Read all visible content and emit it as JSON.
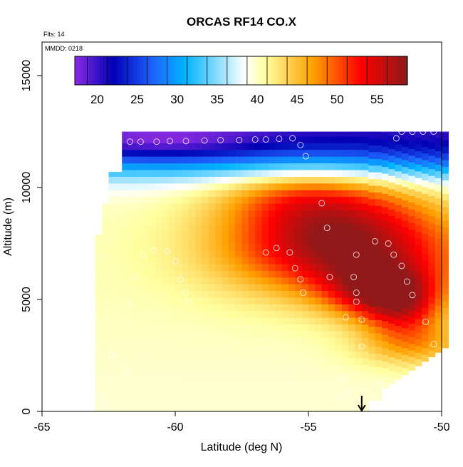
{
  "chart_data": {
    "type": "heatmap",
    "title": "ORCAS RF14 CO.X",
    "flights_label": "Flts: 14",
    "date_label": "MMDD: 0218",
    "xlabel": "Latitude (deg N)",
    "ylabel": "Altitude (m)",
    "xlim": [
      -65,
      -50
    ],
    "ylim": [
      0,
      16500
    ],
    "x_ticks": [
      -65,
      -60,
      -55,
      -50
    ],
    "x_tick_labels": [
      "-65",
      "-60",
      "-55",
      "-50"
    ],
    "y_ticks": [
      0,
      5000,
      10000,
      15000
    ],
    "y_tick_labels": [
      "0",
      "5000",
      "10000",
      "15000"
    ],
    "colorbar": {
      "min": 17.2,
      "max": 58.8,
      "ticks": [
        20,
        25,
        30,
        35,
        40,
        45,
        50,
        55
      ],
      "tick_labels": [
        "20",
        "25",
        "30",
        "35",
        "40",
        "45",
        "50",
        "55"
      ],
      "colors": [
        "#8a2be2",
        "#0000b4",
        "#1e64ff",
        "#00b4ff",
        "#ffffff",
        "#ffffa0",
        "#ffa000",
        "#ff0000",
        "#8b1a1a"
      ],
      "color_stops": [
        17.2,
        22,
        27,
        31,
        38.5,
        41,
        47,
        53,
        58.8
      ]
    },
    "field_description_values": {
      "background_low": 40,
      "upper_trough_min": 19,
      "core_max": 56
    },
    "observation_points": [
      {
        "lat": -62.2,
        "alt": 12000
      },
      {
        "lat": -61.7,
        "alt": 12050
      },
      {
        "lat": -61.3,
        "alt": 12050
      },
      {
        "lat": -60.7,
        "alt": 12050
      },
      {
        "lat": -60.2,
        "alt": 12080
      },
      {
        "lat": -59.6,
        "alt": 12080
      },
      {
        "lat": -58.9,
        "alt": 12100
      },
      {
        "lat": -58.3,
        "alt": 12120
      },
      {
        "lat": -57.6,
        "alt": 12120
      },
      {
        "lat": -57.0,
        "alt": 12150
      },
      {
        "lat": -56.6,
        "alt": 12150
      },
      {
        "lat": -56.1,
        "alt": 12180
      },
      {
        "lat": -55.6,
        "alt": 12200
      },
      {
        "lat": -55.3,
        "alt": 11900
      },
      {
        "lat": -55.1,
        "alt": 11400
      },
      {
        "lat": -54.5,
        "alt": 9300
      },
      {
        "lat": -54.3,
        "alt": 8200
      },
      {
        "lat": -51.7,
        "alt": 12200
      },
      {
        "lat": -51.5,
        "alt": 12500
      },
      {
        "lat": -51.1,
        "alt": 12500
      },
      {
        "lat": -50.7,
        "alt": 12500
      },
      {
        "lat": -50.3,
        "alt": 12500
      },
      {
        "lat": -60.8,
        "alt": 7200
      },
      {
        "lat": -60.3,
        "alt": 7150
      },
      {
        "lat": -61.2,
        "alt": 7000
      },
      {
        "lat": -60.0,
        "alt": 6700
      },
      {
        "lat": -59.8,
        "alt": 5900
      },
      {
        "lat": -59.6,
        "alt": 5300
      },
      {
        "lat": -59.5,
        "alt": 4900
      },
      {
        "lat": -61.5,
        "alt": 6000
      },
      {
        "lat": -61.7,
        "alt": 4800
      },
      {
        "lat": -56.6,
        "alt": 7100
      },
      {
        "lat": -56.2,
        "alt": 7300
      },
      {
        "lat": -55.7,
        "alt": 7100
      },
      {
        "lat": -55.5,
        "alt": 6400
      },
      {
        "lat": -55.3,
        "alt": 5900
      },
      {
        "lat": -55.2,
        "alt": 5300
      },
      {
        "lat": -53.2,
        "alt": 7000
      },
      {
        "lat": -52.5,
        "alt": 7600
      },
      {
        "lat": -52.0,
        "alt": 7500
      },
      {
        "lat": -51.8,
        "alt": 7000
      },
      {
        "lat": -51.5,
        "alt": 6500
      },
      {
        "lat": -51.3,
        "alt": 5800
      },
      {
        "lat": -51.1,
        "alt": 5200
      },
      {
        "lat": -50.6,
        "alt": 4000
      },
      {
        "lat": -50.3,
        "alt": 3000
      },
      {
        "lat": -54.2,
        "alt": 6000
      },
      {
        "lat": -53.3,
        "alt": 6000
      },
      {
        "lat": -53.2,
        "alt": 5300
      },
      {
        "lat": -53.2,
        "alt": 4900
      },
      {
        "lat": -53.0,
        "alt": 4100
      },
      {
        "lat": -53.6,
        "alt": 4200
      },
      {
        "lat": -53.0,
        "alt": 2900
      },
      {
        "lat": -53.7,
        "alt": 1500
      },
      {
        "lat": -53.5,
        "alt": 900
      },
      {
        "lat": -53.8,
        "alt": 600
      },
      {
        "lat": -52.3,
        "alt": 1200
      },
      {
        "lat": -50.0,
        "alt": 2300
      },
      {
        "lat": -62.8,
        "alt": 700
      },
      {
        "lat": -62.6,
        "alt": 300
      },
      {
        "lat": -61.8,
        "alt": 1800
      },
      {
        "lat": -62.4,
        "alt": 2500
      },
      {
        "lat": -62.7,
        "alt": 6900
      }
    ],
    "arrow_marker_lat": -53.0,
    "arrow_marker_alt_top": 700
  }
}
